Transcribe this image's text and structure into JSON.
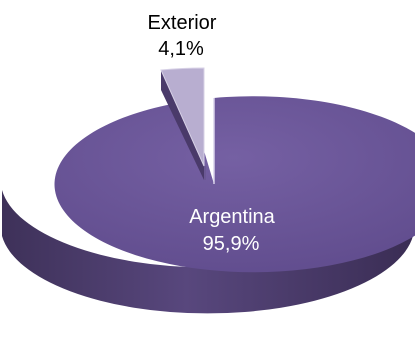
{
  "chart_data": {
    "type": "pie",
    "style": "3d-exploded",
    "slices": [
      {
        "name": "Argentina",
        "value": 95.9,
        "value_label": "95,9%",
        "color": "#6a5496",
        "side_color": "#4b3b6a",
        "label_color": "#ffffff"
      },
      {
        "name": "Exterior",
        "value": 4.1,
        "value_label": "4,1%",
        "color": "#b8aed0",
        "side_color": "#5f4a86",
        "label_color": "#000000"
      }
    ]
  }
}
